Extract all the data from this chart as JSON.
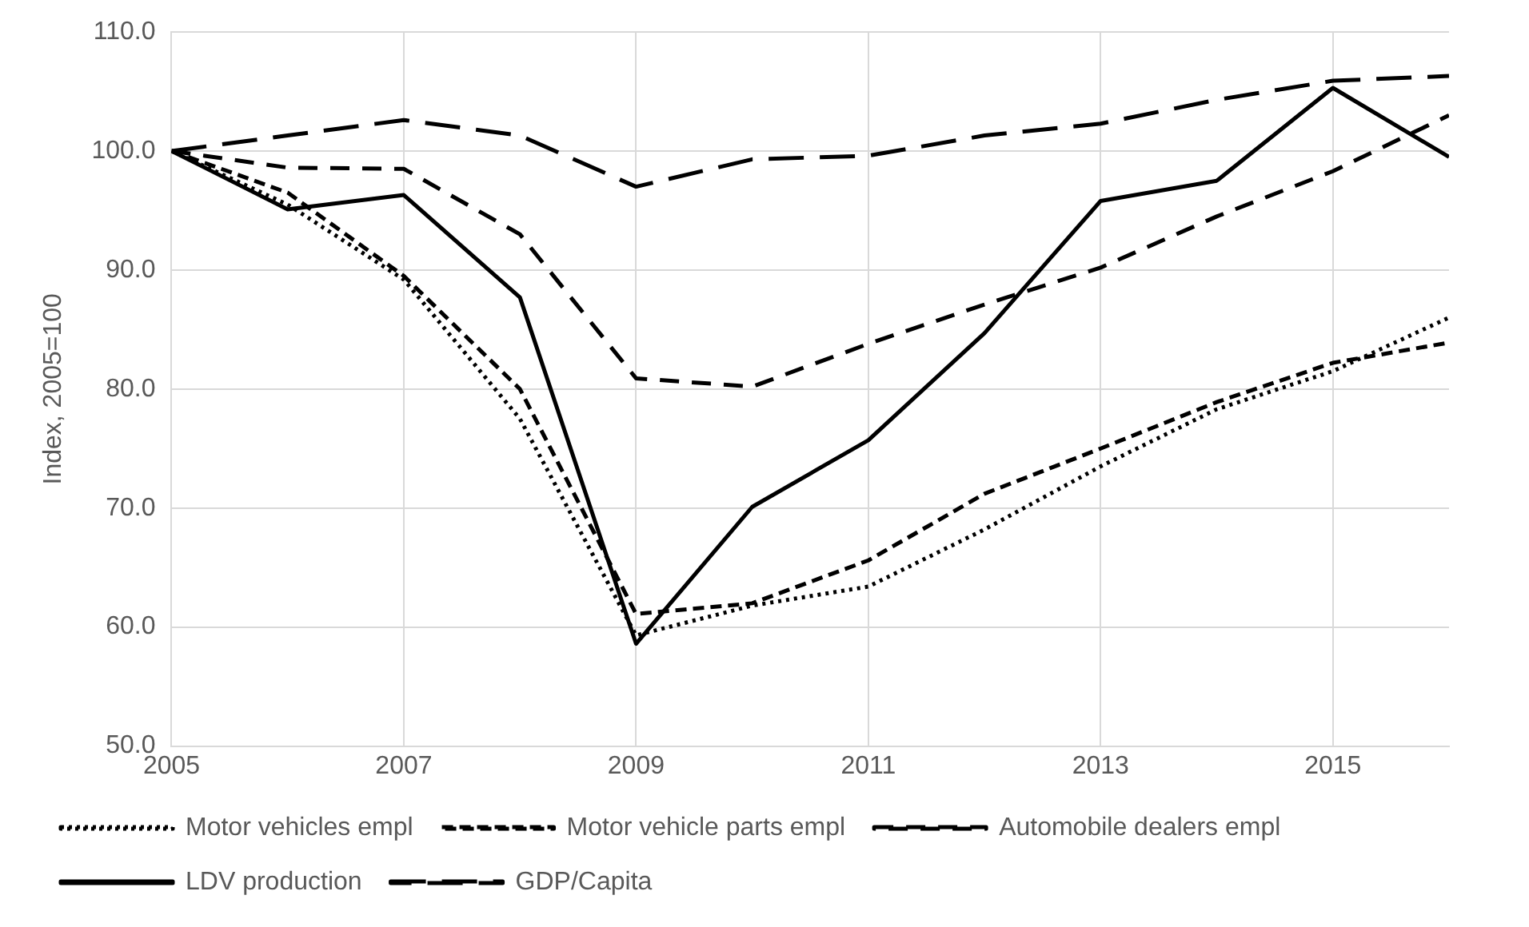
{
  "chart_data": {
    "type": "line",
    "ylabel": "Index, 2005=100",
    "x": [
      2005,
      2006,
      2007,
      2008,
      2009,
      2010,
      2011,
      2012,
      2013,
      2014,
      2015,
      2016
    ],
    "xlim": [
      2005,
      2016
    ],
    "xticks": [
      2005,
      2007,
      2009,
      2011,
      2013,
      2015
    ],
    "ylim": [
      50,
      110
    ],
    "yticks": [
      {
        "value": 50,
        "label": "50.0"
      },
      {
        "value": 60,
        "label": "60.0"
      },
      {
        "value": 70,
        "label": "70.0"
      },
      {
        "value": 80,
        "label": "80.0"
      },
      {
        "value": 90,
        "label": "90.0"
      },
      {
        "value": 100,
        "label": "100.0"
      },
      {
        "value": 110,
        "label": "110.0"
      }
    ],
    "grid": true,
    "legend": "bottom",
    "marker": "none",
    "series": [
      {
        "name": "Motor vehicles empl",
        "color": "#000000",
        "line_style": "dotted",
        "values": [
          100,
          95.5,
          89.2,
          77.5,
          59.3,
          61.8,
          63.4,
          68.2,
          73.5,
          78.3,
          81.5,
          86.0
        ]
      },
      {
        "name": "Motor vehicle parts empl",
        "color": "#000000",
        "line_style": "dashed",
        "values": [
          100,
          96.5,
          89.5,
          80.0,
          61.1,
          62.0,
          65.6,
          71.2,
          75.0,
          78.9,
          82.2,
          83.9
        ]
      },
      {
        "name": "Automobile dealers empl",
        "color": "#000000",
        "line_style": "dashed",
        "values": [
          100,
          98.6,
          98.5,
          93.0,
          80.9,
          80.2,
          83.8,
          87.1,
          90.2,
          94.5,
          98.3,
          103.0
        ]
      },
      {
        "name": "LDV production",
        "color": "#000000",
        "line_style": "solid",
        "values": [
          100,
          95.1,
          96.3,
          87.7,
          58.6,
          70.1,
          75.7,
          84.7,
          95.8,
          97.5,
          105.3,
          99.5
        ]
      },
      {
        "name": "GDP/Capita",
        "color": "#000000",
        "line_style": "dashed",
        "values": [
          100,
          101.3,
          102.6,
          101.3,
          97.0,
          99.3,
          99.6,
          101.3,
          102.3,
          104.3,
          105.9,
          106.3
        ]
      }
    ]
  }
}
